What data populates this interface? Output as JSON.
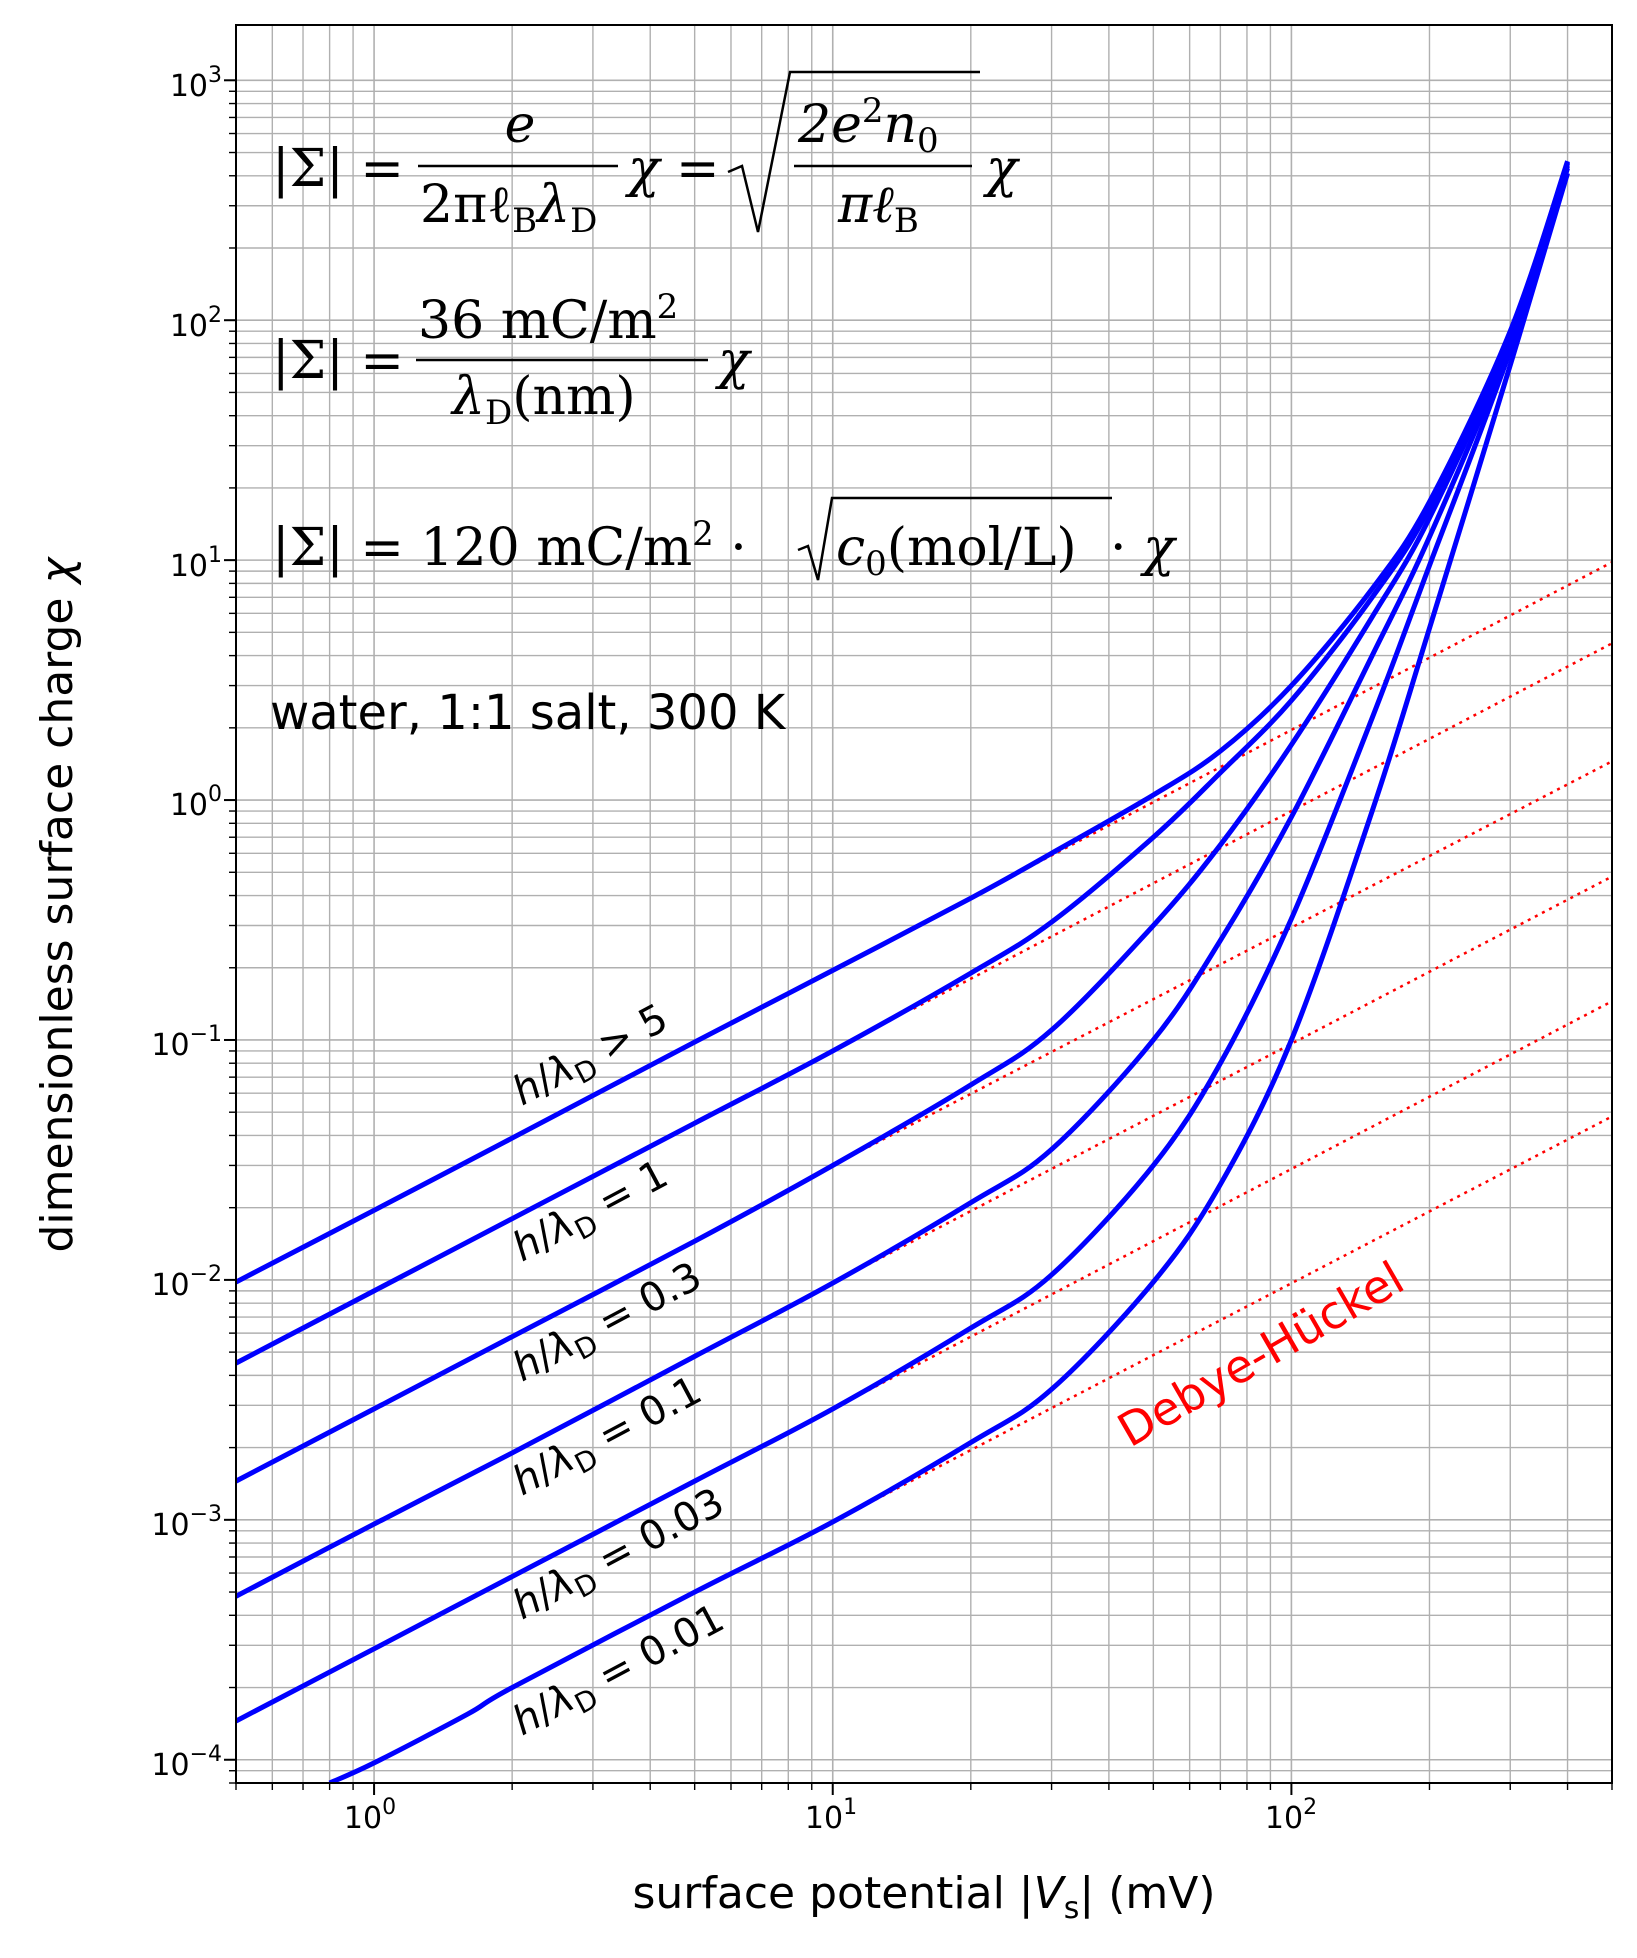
{
  "chart_data": {
    "type": "line",
    "x_scale": "log",
    "y_scale": "log",
    "xlabel": "surface potential |V_s| (mV)",
    "ylabel": "dimensionless surface charge χ",
    "xlim": [
      0.5,
      500
    ],
    "ylim": [
      8e-05,
      1700
    ],
    "grid": "both major and minor",
    "x_ticks": [
      {
        "value": 1,
        "label": "10^0"
      },
      {
        "value": 10,
        "label": "10^1"
      },
      {
        "value": 100,
        "label": "10^2"
      }
    ],
    "y_ticks": [
      {
        "value": 0.0001,
        "label": "10^−4"
      },
      {
        "value": 0.001,
        "label": "10^−3"
      },
      {
        "value": 0.01,
        "label": "10^−2"
      },
      {
        "value": 0.1,
        "label": "10^−1"
      },
      {
        "value": 1,
        "label": "10^0"
      },
      {
        "value": 10,
        "label": "10^1"
      },
      {
        "value": 100,
        "label": "10^2"
      },
      {
        "value": 1000,
        "label": "10^3"
      }
    ],
    "annotations": [
      "|Σ| = e/(2πℓ_B λ_D) χ = √(2e²n₀/(πℓ_B)) χ",
      "|Σ| = 36 mC/m² / λ_D(nm) χ",
      "|Σ| = 120 mC/m² · √(c₀(mol/L)) · χ",
      "water, 1:1 salt, 300 K"
    ],
    "series": [
      {
        "name": "h/λ_D > 5",
        "color": "#0000ff",
        "style": "solid",
        "x": [
          0.5,
          1,
          2,
          5,
          10,
          20,
          30,
          50,
          70,
          100,
          150,
          200,
          300,
          400
        ],
        "y": [
          0.0098,
          0.0195,
          0.039,
          0.098,
          0.195,
          0.39,
          0.6,
          1.05,
          1.6,
          3.0,
          7.6,
          17.5,
          90,
          460
        ]
      },
      {
        "name": "h/λ_D = 1",
        "color": "#0000ff",
        "style": "solid",
        "x": [
          0.5,
          1,
          2,
          5,
          10,
          20,
          30,
          50,
          70,
          100,
          150,
          200,
          300,
          400
        ],
        "y": [
          0.0045,
          0.009,
          0.018,
          0.045,
          0.09,
          0.19,
          0.31,
          0.7,
          1.3,
          2.6,
          7.0,
          16.5,
          88,
          455
        ]
      },
      {
        "name": "h/λ_D = 0.3",
        "color": "#0000ff",
        "style": "solid",
        "x": [
          0.5,
          1,
          2,
          5,
          10,
          20,
          30,
          50,
          70,
          100,
          150,
          200,
          300,
          400
        ],
        "y": [
          0.00145,
          0.0029,
          0.0058,
          0.0145,
          0.03,
          0.065,
          0.11,
          0.3,
          0.65,
          1.7,
          5.8,
          15,
          85,
          450
        ]
      },
      {
        "name": "h/λ_D = 0.1",
        "color": "#0000ff",
        "style": "solid",
        "x": [
          0.5,
          1,
          2,
          5,
          10,
          20,
          30,
          50,
          70,
          100,
          150,
          200,
          300,
          400
        ],
        "y": [
          0.00048,
          0.00096,
          0.0019,
          0.0048,
          0.0097,
          0.021,
          0.035,
          0.1,
          0.26,
          0.85,
          4.0,
          12.5,
          80,
          440
        ]
      },
      {
        "name": "h/λ_D = 0.03",
        "color": "#0000ff",
        "style": "solid",
        "x": [
          0.5,
          1,
          2,
          5,
          10,
          20,
          30,
          50,
          70,
          100,
          150,
          200,
          300,
          400
        ],
        "y": [
          0.000145,
          0.00029,
          0.00058,
          0.00145,
          0.0029,
          0.0063,
          0.0105,
          0.03,
          0.08,
          0.32,
          2.2,
          9.5,
          75,
          430
        ]
      },
      {
        "name": "h/λ_D = 0.01",
        "color": "#0000ff",
        "style": "solid",
        "x": [
          0.8,
          1,
          1.6,
          2,
          5,
          10,
          20,
          30,
          50,
          70,
          100,
          150,
          200,
          300,
          400
        ],
        "y": [
          8e-05,
          9.7e-05,
          0.000155,
          0.0002,
          0.0005,
          0.00098,
          0.0021,
          0.0035,
          0.0098,
          0.025,
          0.1,
          0.9,
          5.2,
          65,
          410
        ]
      },
      {
        "name": "Debye-Hückel",
        "color": "#ff0000",
        "style": "dotted",
        "lines": [
          {
            "x": [
              25,
              500
            ],
            "y": [
              0.49,
              9.8
            ]
          },
          {
            "x": [
              15,
              500
            ],
            "y": [
              0.135,
              4.5
            ]
          },
          {
            "x": [
              10,
              500
            ],
            "y": [
              0.03,
              1.45
            ]
          },
          {
            "x": [
              10,
              500
            ],
            "y": [
              0.0097,
              0.48
            ]
          },
          {
            "x": [
              10,
              500
            ],
            "y": [
              0.0029,
              0.145
            ]
          },
          {
            "x": [
              10,
              500
            ],
            "y": [
              0.00098,
              0.048
            ]
          }
        ]
      }
    ]
  },
  "labels": {
    "xlabel_text": "surface potential |",
    "xlabel_var": "V",
    "xlabel_sub": "s",
    "xlabel_end": "| (mV)",
    "ylabel_text": "dimensionless surface charge ",
    "ylabel_var": "χ",
    "x_tick_base": "10",
    "x_tick_exps": [
      "0",
      "1",
      "2"
    ],
    "y_tick_base": "10",
    "y_tick_exps": [
      "−4",
      "−3",
      "−2",
      "−1",
      "0",
      "1",
      "2",
      "3"
    ],
    "note": "water, 1:1 salt, 300 K",
    "debye": "Debye-Hückel",
    "curve_labels": [
      {
        "h": "h",
        "lam": "λ",
        "sub": "D",
        "rel": " > 5"
      },
      {
        "h": "h",
        "lam": "λ",
        "sub": "D",
        "rel": " = 1"
      },
      {
        "h": "h",
        "lam": "λ",
        "sub": "D",
        "rel": " = 0.3"
      },
      {
        "h": "h",
        "lam": "λ",
        "sub": "D",
        "rel": " = 0.1"
      },
      {
        "h": "h",
        "lam": "λ",
        "sub": "D",
        "rel": " = 0.03"
      },
      {
        "h": "h",
        "lam": "λ",
        "sub": "D",
        "rel": " = 0.01"
      }
    ],
    "formula1": {
      "lhs": "|Σ| = ",
      "num1": "e",
      "den1_a": "2πℓ",
      "den1_b": "B",
      "den1_c": "λ",
      "den1_d": "D",
      "chi1": "χ = ",
      "num2_a": "2e",
      "num2_b": "2",
      "num2_c": "n",
      "num2_d": "0",
      "den2_a": "πℓ",
      "den2_b": "B",
      "chi2": "χ"
    },
    "formula2": {
      "lhs": "|Σ| = ",
      "num_a": "36 mC/m",
      "num_b": "2",
      "den_a": "λ",
      "den_b": "D",
      "den_c": "(nm)",
      "chi": "χ"
    },
    "formula3": {
      "lhs": "|Σ| = 120 mC/m",
      "sup": "2",
      "dot1": " · ",
      "rad_a": "c",
      "rad_b": "0",
      "rad_c": "(mol/L)",
      "dot2": " · ",
      "chi": "χ"
    }
  }
}
